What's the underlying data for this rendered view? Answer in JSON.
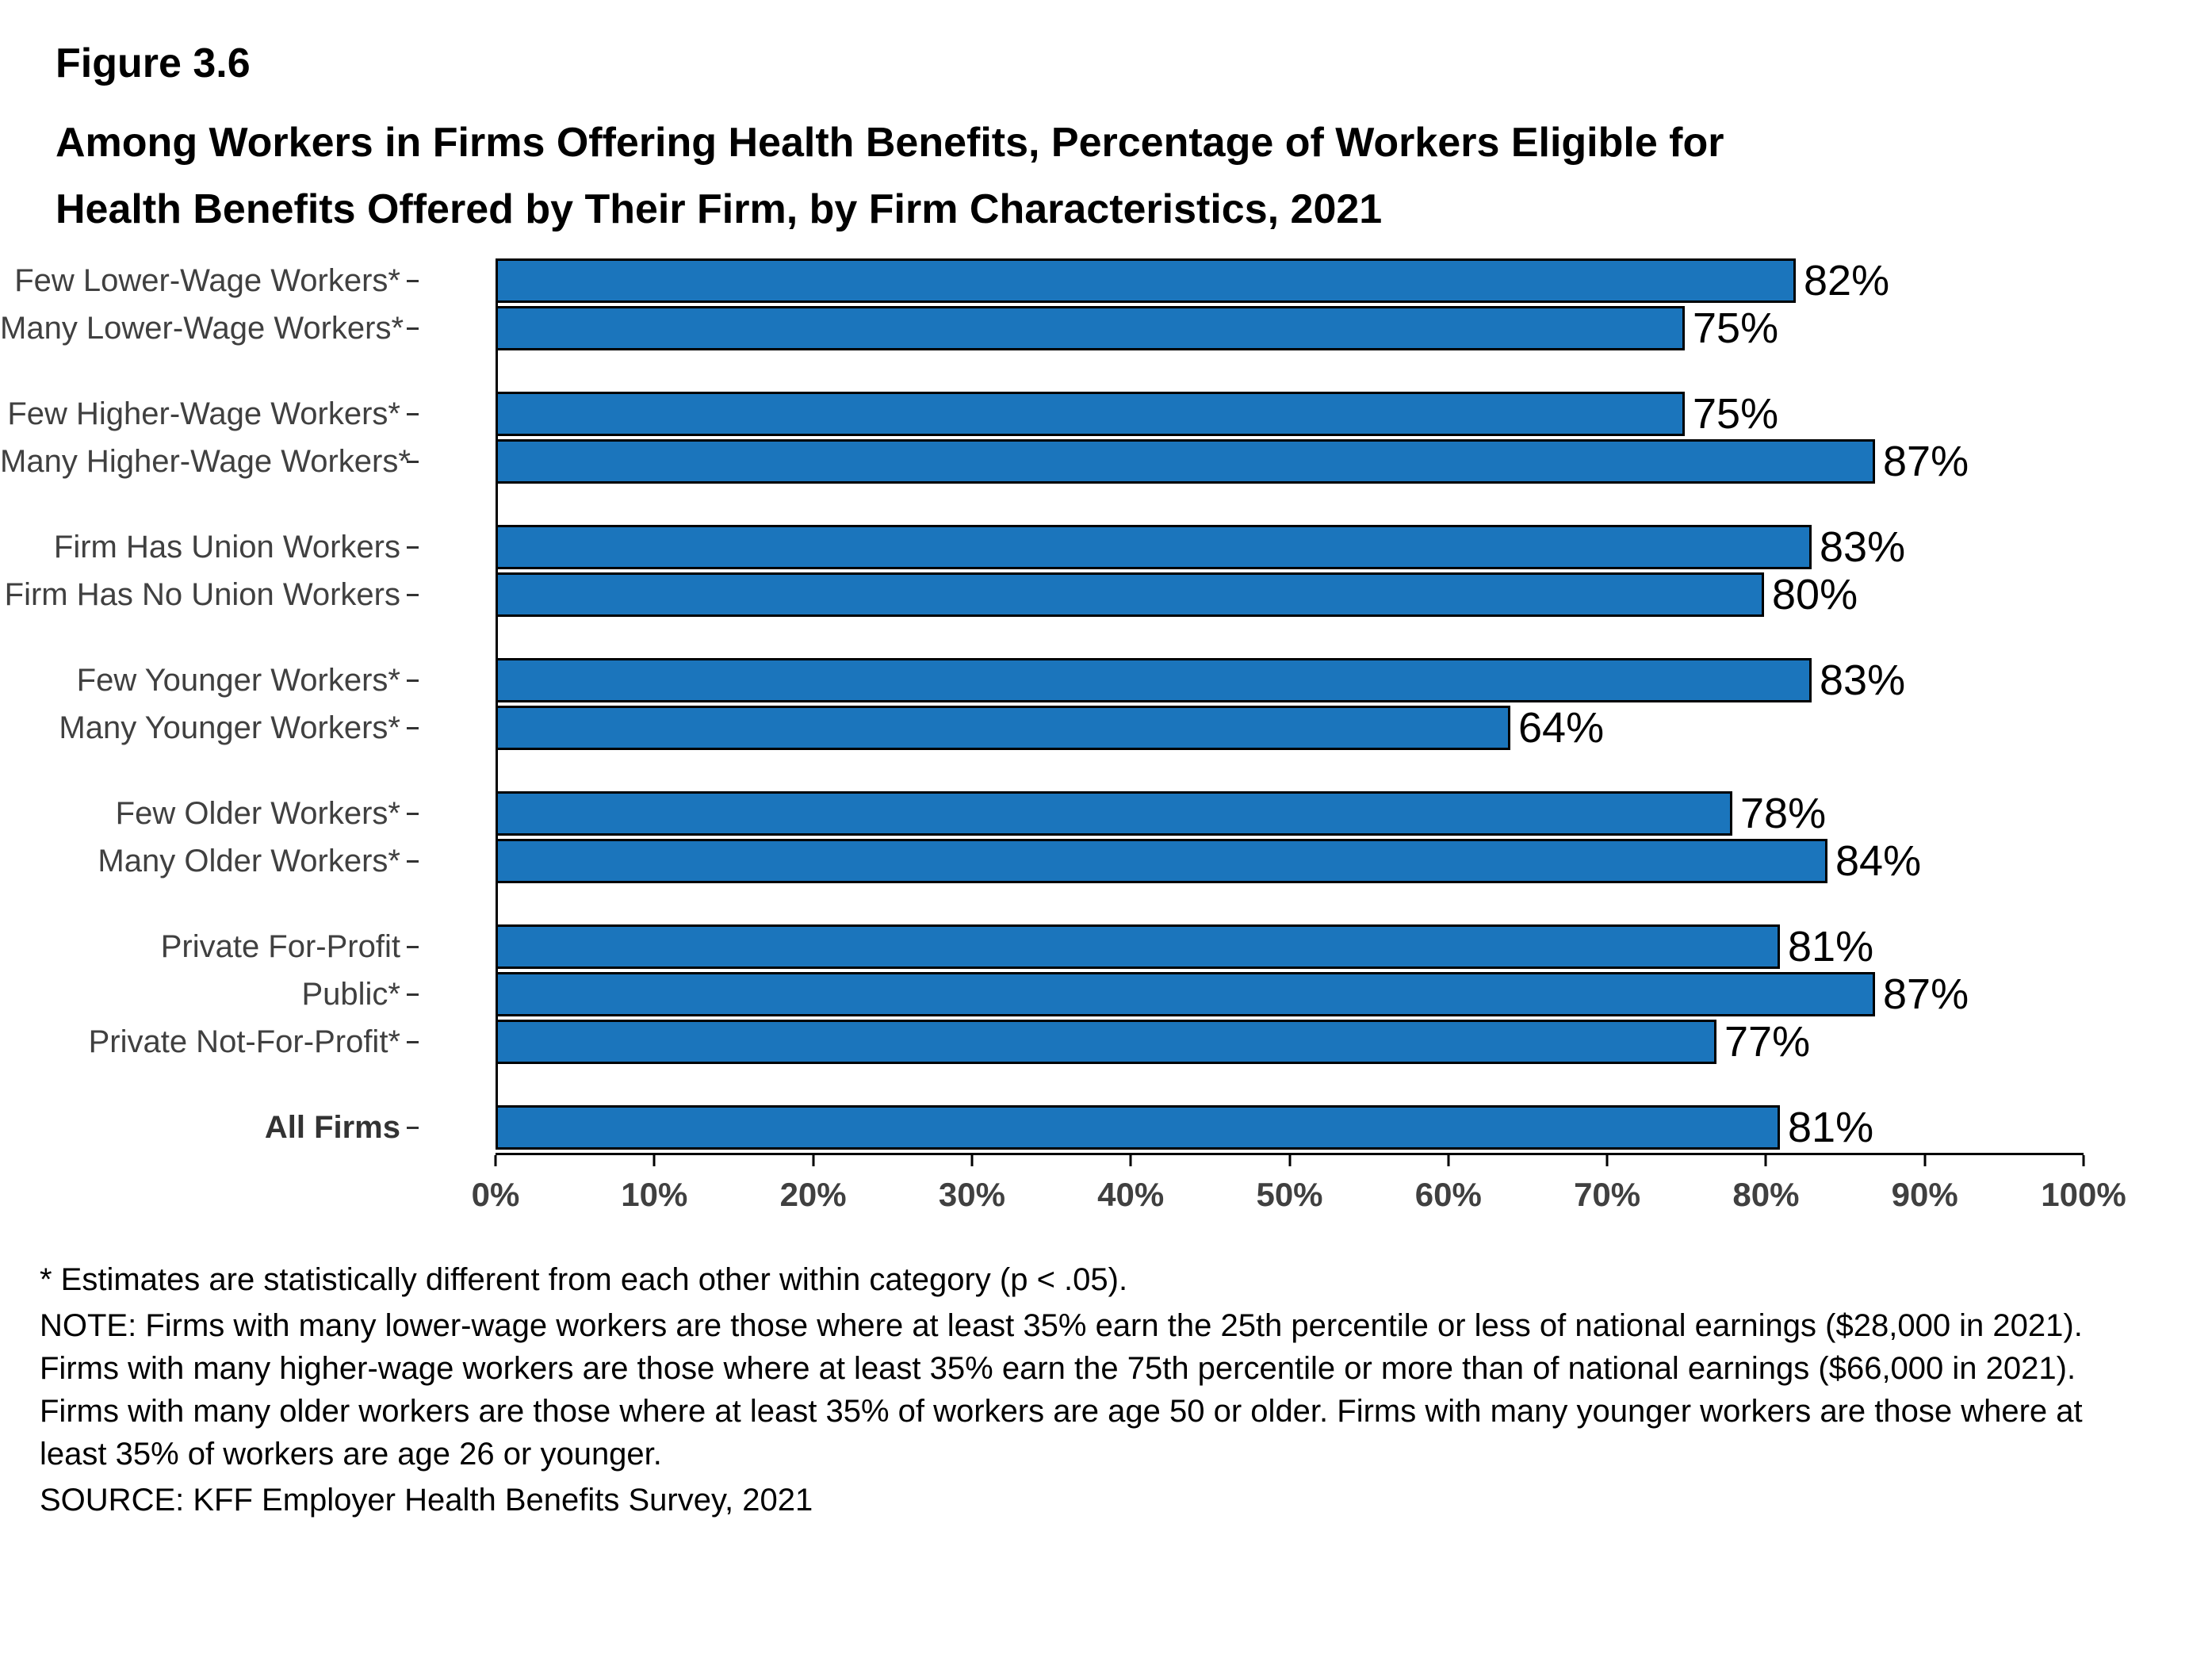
{
  "figure_label": "Figure 3.6",
  "title_line1": "Among Workers in Firms Offering Health Benefits, Percentage of Workers Eligible for",
  "title_line2": "Health Benefits Offered by Their Firm, by Firm Characteristics, 2021",
  "colors": {
    "bar": "#1B75BC",
    "bar_border": "#000000",
    "category_label": "#404040",
    "axis_text": "#404040"
  },
  "chart_data": {
    "type": "bar",
    "orientation": "horizontal",
    "title": "Among Workers in Firms Offering Health Benefits, Percentage of Workers Eligible for Health Benefits Offered by Their Firm, by Firm Characteristics, 2021",
    "xlabel": "",
    "ylabel": "",
    "xlim": [
      0,
      100
    ],
    "grid": false,
    "legend": "none",
    "value_suffix": "%",
    "x_ticks": [
      "0%",
      "10%",
      "20%",
      "30%",
      "40%",
      "50%",
      "60%",
      "70%",
      "80%",
      "90%",
      "100%"
    ],
    "groups": [
      {
        "items": [
          {
            "label": "Few Lower-Wage Workers*",
            "value": 82
          },
          {
            "label": "Many Lower-Wage Workers*",
            "value": 75
          }
        ]
      },
      {
        "items": [
          {
            "label": "Few Higher-Wage Workers*",
            "value": 75
          },
          {
            "label": "Many Higher-Wage Workers*",
            "value": 87
          }
        ]
      },
      {
        "items": [
          {
            "label": "Firm Has Union Workers",
            "value": 83
          },
          {
            "label": "Firm Has No Union Workers",
            "value": 80
          }
        ]
      },
      {
        "items": [
          {
            "label": "Few Younger Workers*",
            "value": 83
          },
          {
            "label": "Many Younger Workers*",
            "value": 64
          }
        ]
      },
      {
        "items": [
          {
            "label": "Few Older Workers*",
            "value": 78
          },
          {
            "label": "Many Older Workers*",
            "value": 84
          }
        ]
      },
      {
        "items": [
          {
            "label": "Private For-Profit",
            "value": 81
          },
          {
            "label": "Public*",
            "value": 87
          },
          {
            "label": "Private Not-For-Profit*",
            "value": 77
          }
        ]
      },
      {
        "items": [
          {
            "label": "All Firms",
            "value": 81,
            "bold": true
          }
        ]
      }
    ]
  },
  "footnotes": {
    "asterisk": "* Estimates are statistically different from each other within category (p < .05).",
    "note": "NOTE: Firms with many lower-wage workers are those where at least 35% earn the 25th percentile or less of national earnings ($28,000 in 2021). Firms with many higher-wage workers are those where at least 35% earn the 75th percentile or more than of national earnings ($66,000 in 2021). Firms with many older workers are those where at least 35% of workers are age 50 or older. Firms with many younger workers are those where at least 35% of workers are age 26 or younger.",
    "source": "SOURCE: KFF Employer Health Benefits Survey, 2021"
  }
}
